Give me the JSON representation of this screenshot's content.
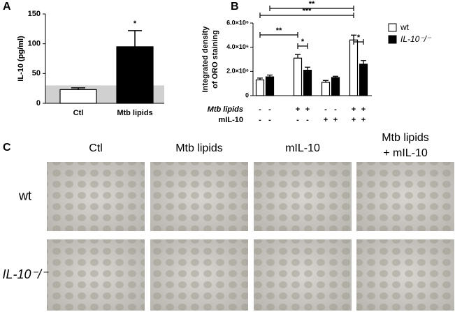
{
  "chart_data": [
    {
      "type": "bar",
      "panel": "A",
      "ylabel": "IL-10 (pg/ml)",
      "categories": [
        "Ctl",
        "Mtb lipids"
      ],
      "values": [
        23,
        95
      ],
      "errors": [
        3,
        27
      ],
      "colors": [
        "#ffffff",
        "#000000"
      ],
      "ylim": [
        0,
        150
      ],
      "yticks": [
        0,
        50,
        100,
        150
      ],
      "shaded_range": [
        0,
        30
      ],
      "annotations": [
        "*"
      ]
    },
    {
      "type": "grouped_bar",
      "panel": "B",
      "ylabel": [
        "Integrated density",
        "of ORO staining"
      ],
      "ylim": [
        0,
        6000000
      ],
      "yticks": [
        0,
        {
          "value": 2000000,
          "label": "2.0×10⁶"
        },
        {
          "value": 4000000,
          "label": "4.0×10⁶"
        },
        {
          "value": 6000000,
          "label": "6.0×10⁶"
        }
      ],
      "series": [
        {
          "name": "wt",
          "color": "#ffffff",
          "values": [
            1300000,
            3100000,
            1100000,
            4600000
          ],
          "errors": [
            150000,
            300000,
            150000,
            400000
          ]
        },
        {
          "name": "IL-10⁻/⁻",
          "color": "#000000",
          "values": [
            1550000,
            2100000,
            1500000,
            2600000
          ],
          "errors": [
            150000,
            250000,
            100000,
            300000
          ]
        }
      ],
      "treatments": [
        {
          "label": "Mtb lipids",
          "marks": [
            "-",
            "-",
            "+",
            "+",
            "-",
            "-",
            "+",
            "+"
          ]
        },
        {
          "label": "mIL-10",
          "marks": [
            "-",
            "-",
            "-",
            "-",
            "+",
            "+",
            "+",
            "+"
          ]
        }
      ],
      "annotations": [
        "**",
        "*",
        "***",
        "**",
        "*"
      ]
    }
  ],
  "panel_c": {
    "letter": "C",
    "columns": [
      "Ctl",
      "Mtb lipids",
      "mIL-10",
      [
        "Mtb lipids",
        "+ mIL-10"
      ]
    ],
    "rows": [
      "wt",
      "IL-10⁻/⁻"
    ]
  }
}
